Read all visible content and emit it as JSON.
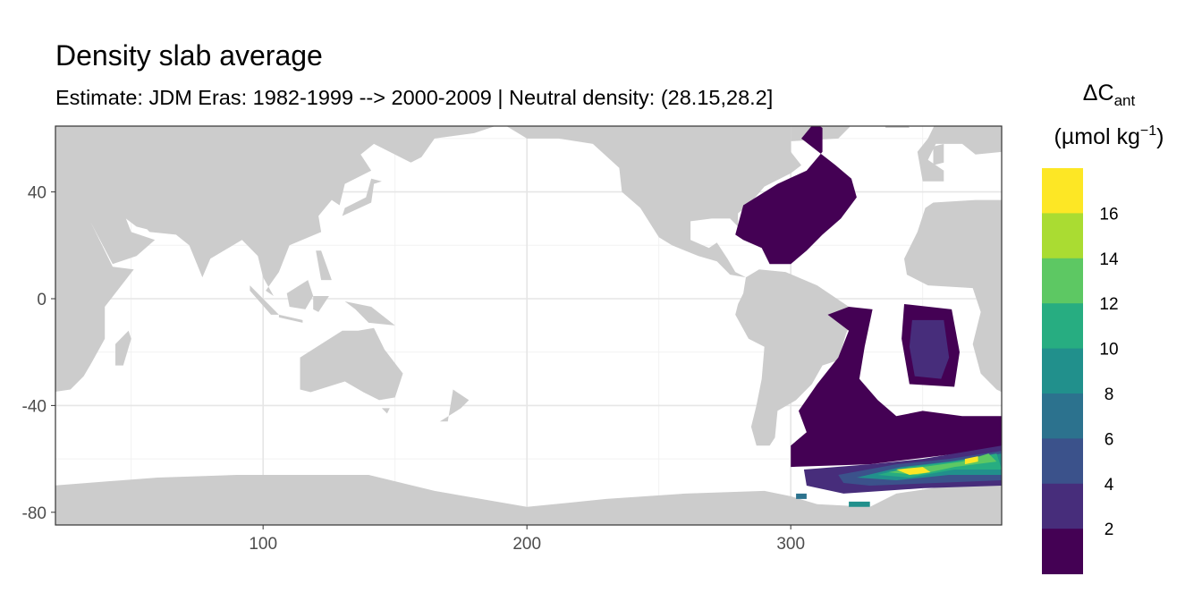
{
  "chart_data": {
    "type": "heatmap",
    "title": "Density slab average",
    "subtitle": "Estimate: JDM Eras: 1982-1999 --> 2000-2009 | Neutral density: (28.15,28.2]",
    "xlabel": "",
    "ylabel": "",
    "xlim": [
      21,
      380
    ],
    "ylim": [
      -85,
      65
    ],
    "x_ticks": [
      100,
      200,
      300
    ],
    "y_ticks": [
      40,
      0,
      -40,
      -80
    ],
    "grid": true,
    "legend": {
      "title_main": "ΔC",
      "title_sub": "ant",
      "units": "(µmol kg",
      "units_exp": "−1",
      "units_close": ")",
      "placement": "right",
      "breaks": [
        "2",
        "4",
        "6",
        "8",
        "10",
        "12",
        "14",
        "16"
      ],
      "colors": [
        "#440154",
        "#472D7B",
        "#3B528B",
        "#2C728E",
        "#21908C",
        "#27AD81",
        "#5DC863",
        "#AADC32",
        "#FDE725"
      ]
    },
    "land_color": "#cccccc",
    "regions": [
      {
        "value": 1,
        "polygon": [
          [
            279,
            24
          ],
          [
            282,
            35
          ],
          [
            295,
            43
          ],
          [
            306,
            48
          ],
          [
            312,
            55
          ],
          [
            312,
            64
          ],
          [
            309,
            66
          ],
          [
            304,
            60
          ],
          [
            317,
            50
          ],
          [
            323,
            45
          ],
          [
            325,
            38
          ],
          [
            319,
            30
          ],
          [
            312,
            24
          ],
          [
            306,
            18
          ],
          [
            300,
            13
          ],
          [
            292,
            13
          ],
          [
            289,
            19
          ],
          [
            282,
            22
          ]
        ]
      },
      {
        "value": 1,
        "polygon": [
          [
            314,
            -6
          ],
          [
            322,
            -3
          ],
          [
            331,
            -4
          ],
          [
            328,
            -18
          ],
          [
            326,
            -30
          ],
          [
            333,
            -38
          ],
          [
            340,
            -44
          ],
          [
            350,
            -42
          ],
          [
            365,
            -44
          ],
          [
            380,
            -44
          ],
          [
            380,
            -56
          ],
          [
            330,
            -62
          ],
          [
            300,
            -63
          ],
          [
            300,
            -55
          ],
          [
            306,
            -50
          ],
          [
            303,
            -42
          ],
          [
            310,
            -32
          ],
          [
            318,
            -22
          ],
          [
            322,
            -12
          ]
        ]
      },
      {
        "value": 1,
        "polygon": [
          [
            343,
            -2
          ],
          [
            361,
            -4
          ],
          [
            364,
            -20
          ],
          [
            362,
            -33
          ],
          [
            345,
            -32
          ],
          [
            342,
            -15
          ]
        ]
      },
      {
        "value": 3,
        "polygon": [
          [
            346,
            -8
          ],
          [
            358,
            -8
          ],
          [
            360,
            -22
          ],
          [
            357,
            -30
          ],
          [
            347,
            -29
          ],
          [
            345,
            -18
          ]
        ]
      },
      {
        "value": 3,
        "polygon": [
          [
            305,
            -64
          ],
          [
            330,
            -62
          ],
          [
            350,
            -60
          ],
          [
            380,
            -55
          ],
          [
            380,
            -70
          ],
          [
            350,
            -71
          ],
          [
            320,
            -73
          ],
          [
            306,
            -70
          ]
        ]
      },
      {
        "value": 5,
        "polygon": [
          [
            318,
            -66
          ],
          [
            340,
            -62
          ],
          [
            360,
            -60
          ],
          [
            380,
            -57
          ],
          [
            380,
            -68
          ],
          [
            355,
            -69
          ],
          [
            330,
            -70
          ],
          [
            320,
            -69
          ]
        ]
      },
      {
        "value": 9,
        "polygon": [
          [
            325,
            -67
          ],
          [
            342,
            -63
          ],
          [
            360,
            -61
          ],
          [
            380,
            -58
          ],
          [
            380,
            -66
          ],
          [
            360,
            -66
          ],
          [
            340,
            -68
          ]
        ]
      },
      {
        "value": 11,
        "polygon": [
          [
            333,
            -66
          ],
          [
            345,
            -63
          ],
          [
            362,
            -61
          ],
          [
            378,
            -58
          ],
          [
            380,
            -64
          ],
          [
            362,
            -64
          ],
          [
            345,
            -67
          ]
        ]
      },
      {
        "value": 13,
        "polygon": [
          [
            337,
            -65
          ],
          [
            350,
            -63
          ],
          [
            365,
            -61
          ],
          [
            375,
            -58
          ],
          [
            378,
            -61
          ],
          [
            362,
            -63
          ],
          [
            348,
            -66
          ]
        ]
      },
      {
        "value": 17,
        "polygon": [
          [
            340,
            -64
          ],
          [
            350,
            -63
          ],
          [
            353,
            -65
          ],
          [
            345,
            -66
          ]
        ]
      },
      {
        "value": 17,
        "polygon": [
          [
            366,
            -60
          ],
          [
            371,
            -59
          ],
          [
            371,
            -61
          ],
          [
            366,
            -62
          ]
        ]
      },
      {
        "value": 7,
        "polygon": [
          [
            302,
            -73
          ],
          [
            306,
            -73
          ],
          [
            306,
            -75
          ],
          [
            302,
            -75
          ]
        ]
      },
      {
        "value": 9,
        "polygon": [
          [
            322,
            -76
          ],
          [
            330,
            -76
          ],
          [
            330,
            -78
          ],
          [
            322,
            -78
          ]
        ]
      }
    ]
  }
}
